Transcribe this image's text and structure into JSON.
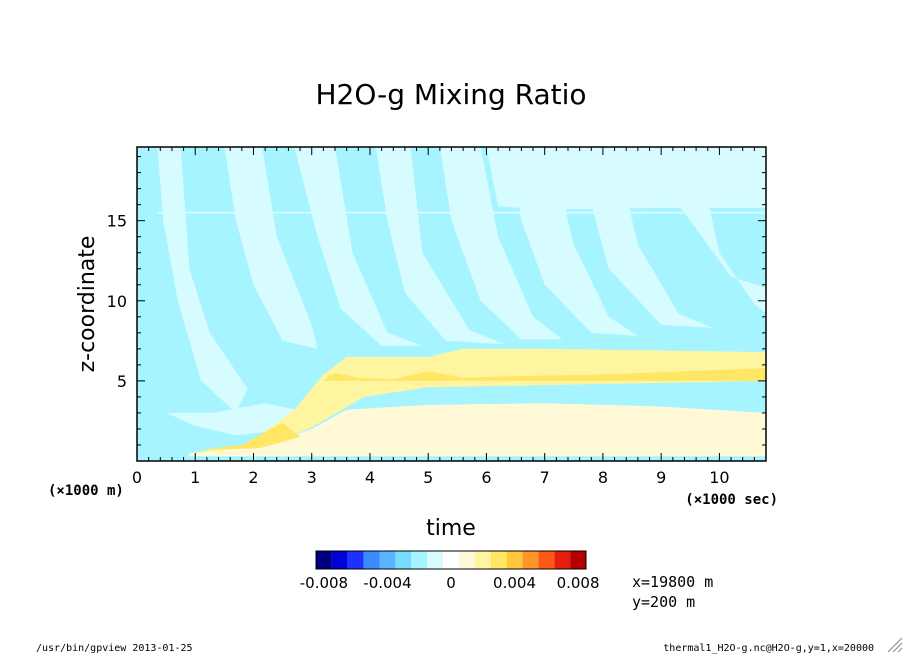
{
  "chart_data": {
    "type": "heatmap",
    "title": "H2O-g Mixing Ratio",
    "xlabel": "time",
    "ylabel": "z-coordinate",
    "x_unit": "(×1000 sec)",
    "y_unit": "(×1000 m)",
    "xlim": [
      0,
      10.8
    ],
    "ylim": [
      0,
      19.6
    ],
    "x_ticks": [
      "0",
      "1",
      "2",
      "3",
      "4",
      "5",
      "6",
      "7",
      "8",
      "9",
      "10"
    ],
    "y_ticks": [
      "5",
      "10",
      "15"
    ],
    "colorbar": {
      "colors": [
        "#00007f",
        "#0000d8",
        "#1e32ff",
        "#3c8cff",
        "#5ab4ff",
        "#78dcff",
        "#a5f4ff",
        "#d7fcff",
        "#ffffff",
        "#fff9d7",
        "#fff5a0",
        "#ffe664",
        "#ffc83c",
        "#ff9628",
        "#ff5a14",
        "#e61e0a",
        "#b40000"
      ],
      "tick_labels": [
        "-0.008",
        "-0.004",
        "0",
        "0.004",
        "0.008"
      ],
      "tick_values": [
        -0.008,
        -0.004,
        0,
        0.004,
        0.008
      ],
      "range": [
        -0.0085,
        0.0085
      ]
    },
    "regions": {
      "background": "#a5f4ff",
      "bands_light": "#d7fcff",
      "moist_layer_edge": "#fff5a0",
      "moist_layer_core": "#ffe664",
      "lower_layer": "#fff9d7",
      "layer_top_z": 6.5,
      "layer_base_z": 5.0,
      "layer_onset_time": 1.0
    }
  },
  "info": {
    "x_position": "x=19800 m",
    "y_position": "y=200 m"
  },
  "footer": {
    "left": "/usr/bin/gpview  2013-01-25",
    "right": "thermal1_H2O-g.nc@H2O-g,y=1,x=20000"
  }
}
